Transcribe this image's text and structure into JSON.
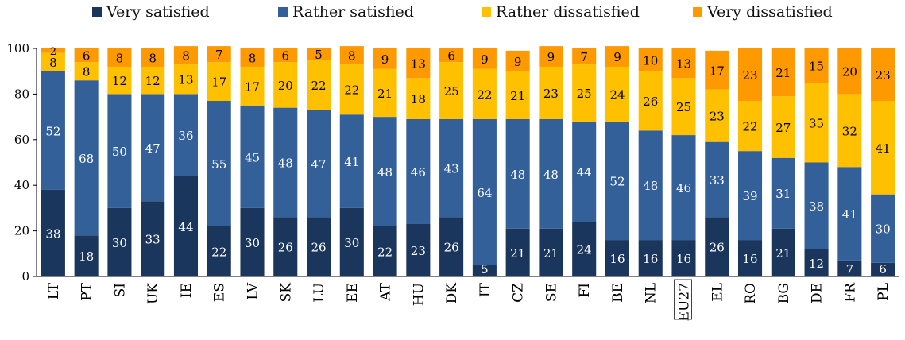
{
  "chart_data": {
    "type": "bar",
    "stacked": true,
    "categories": [
      "LT",
      "PT",
      "SI",
      "UK",
      "IE",
      "ES",
      "LV",
      "SK",
      "LU",
      "EE",
      "AT",
      "HU",
      "DK",
      "IT",
      "CZ",
      "SE",
      "FI",
      "BE",
      "NL",
      "EU27",
      "EL",
      "RO",
      "BG",
      "DE",
      "FR",
      "PL"
    ],
    "highlighted_category": "EU27",
    "series": [
      {
        "name": "Very satisfied",
        "color": "#1b365d",
        "values": [
          38,
          18,
          30,
          33,
          44,
          22,
          30,
          26,
          26,
          30,
          22,
          23,
          26,
          5,
          21,
          21,
          24,
          16,
          16,
          16,
          26,
          16,
          21,
          12,
          7,
          6
        ]
      },
      {
        "name": "Rather satisfied",
        "color": "#34609a",
        "values": [
          52,
          68,
          50,
          47,
          36,
          55,
          45,
          48,
          47,
          41,
          48,
          46,
          43,
          64,
          48,
          48,
          44,
          52,
          48,
          46,
          33,
          39,
          31,
          38,
          41,
          30
        ]
      },
      {
        "name": "Rather dissatisfied",
        "color": "#ffc000",
        "values": [
          8,
          8,
          12,
          12,
          13,
          17,
          17,
          20,
          22,
          22,
          21,
          18,
          25,
          22,
          21,
          23,
          25,
          24,
          26,
          25,
          23,
          22,
          27,
          35,
          32,
          41
        ]
      },
      {
        "name": "Very dissatisfied",
        "color": "#ff9900",
        "values": [
          2,
          6,
          8,
          8,
          8,
          7,
          8,
          6,
          5,
          8,
          9,
          13,
          6,
          9,
          9,
          9,
          7,
          9,
          10,
          13,
          17,
          23,
          21,
          15,
          20,
          23
        ]
      }
    ],
    "ylim": [
      0,
      100
    ],
    "yticks": [
      0,
      20,
      40,
      60,
      80,
      100
    ],
    "legend_position": "top",
    "grid": false
  }
}
